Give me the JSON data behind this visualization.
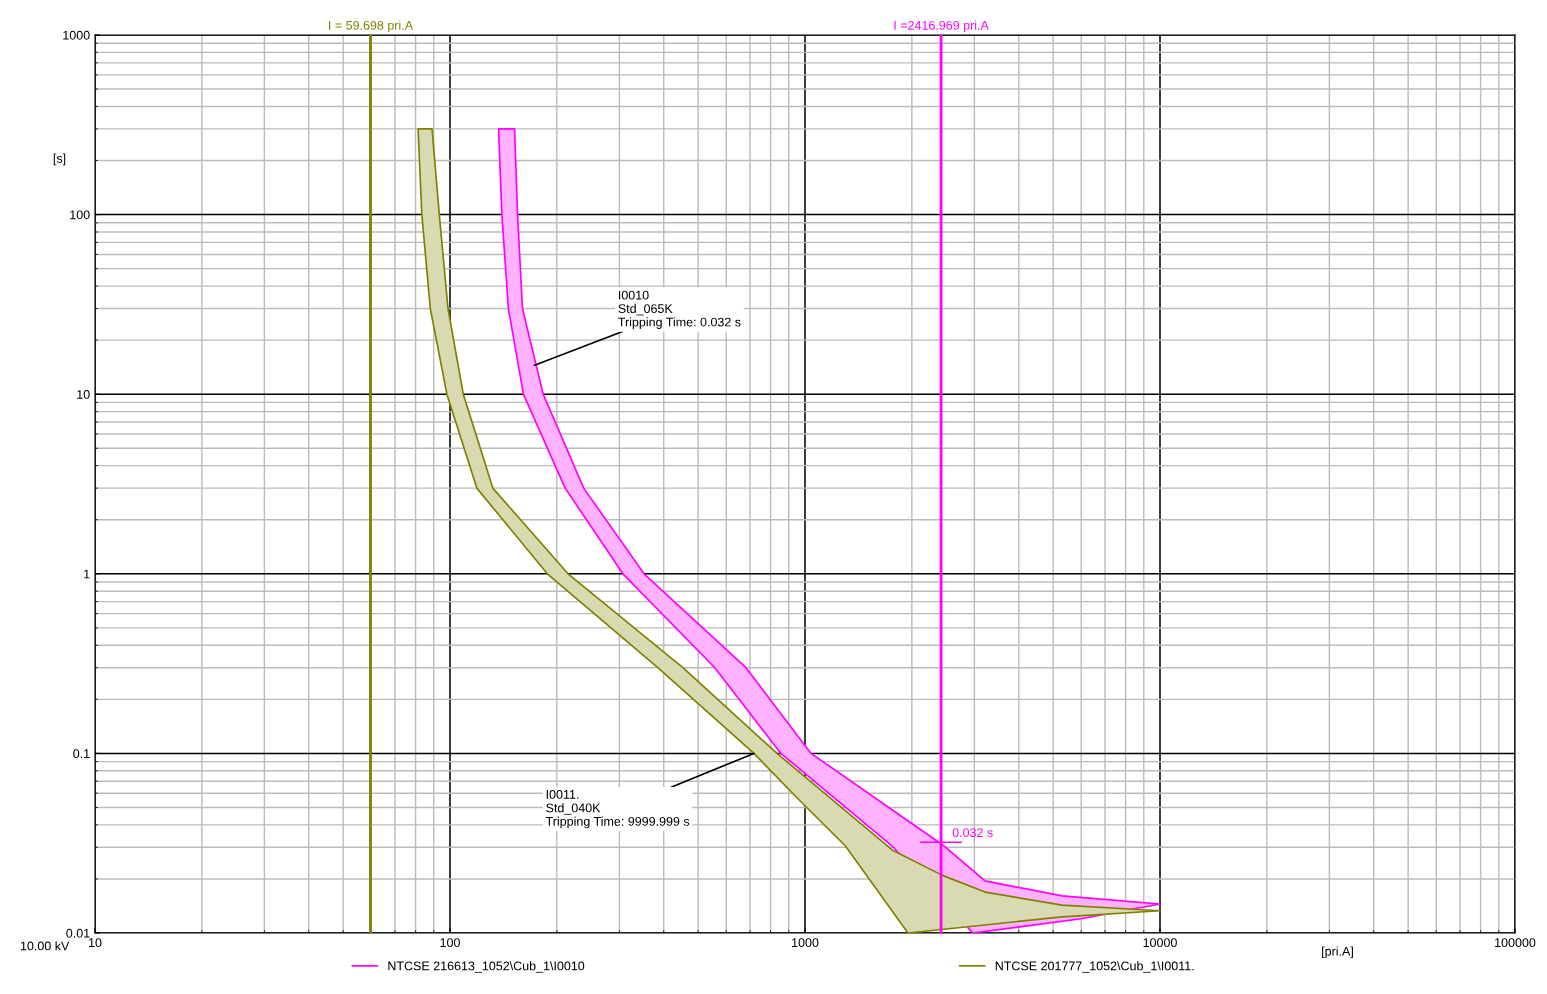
{
  "chart_data": {
    "type": "area",
    "log": "xy",
    "xlabel": "[pri.A]",
    "ylabel": "[s]",
    "xlim": [
      10,
      100000
    ],
    "ylim": [
      0.01,
      1000
    ],
    "xticks": [
      10,
      100,
      1000,
      10000,
      100000
    ],
    "yticks": [
      0.01,
      0.1,
      1,
      10,
      100,
      1000
    ],
    "grid": true,
    "legend": "bottom",
    "series": [
      {
        "name": "NTCSE 216613_1052\\Cub_1\\I0010",
        "color": "#ff00ff",
        "x": [
          137,
          140,
          146,
          161,
          211,
          307,
          557,
          855,
          1760,
          2970,
          6000,
          10000,
          5300,
          3215,
          2466,
          1040,
          682,
          352,
          238,
          183,
          160,
          155,
          152
        ],
        "values": [
          300,
          100,
          30,
          10,
          3,
          1,
          0.3,
          0.1,
          0.0305,
          0.01,
          0.012,
          0.0145,
          0.0161,
          0.0195,
          0.0305,
          0.1,
          0.3,
          1,
          3,
          10,
          30,
          100,
          300
        ]
      },
      {
        "name": "NTCSE 201777_1052\\Cub_1\\I0011.",
        "color": "#808000",
        "x": [
          81.3,
          83.3,
          88,
          98,
          119,
          188,
          385,
          718,
          963,
          1300,
          1950,
          5300,
          10000,
          5300,
          3215,
          2430,
          1760,
          834,
          453,
          215,
          132,
          109,
          98.7,
          93.3,
          89
        ],
        "values": [
          300,
          100,
          30,
          10,
          3,
          1,
          0.3,
          0.1,
          0.055,
          0.0305,
          0.01,
          0.0123,
          0.0133,
          0.0143,
          0.0169,
          0.021,
          0.029,
          0.1,
          0.3,
          1,
          3,
          10,
          30,
          100,
          300
        ]
      }
    ],
    "ref_lines": [
      {
        "axis": "x",
        "value": 59.698,
        "label": "I = 59.698 pri.A",
        "color": "#808000"
      },
      {
        "axis": "x",
        "value": 2416.969,
        "label": "I =2416.969 pri.A",
        "color": "#ff00ff"
      }
    ],
    "annotations": [
      {
        "text": "I0010\nStd_065K\nTripping Time: 0.032 s",
        "x": 173,
        "y": 14.5
      },
      {
        "text": "I0011.\nStd_040K\nTripping Time: 9999.999 s",
        "x": 718,
        "y": 0.1
      },
      {
        "text": "0.032 s",
        "x": 2416.969,
        "y": 0.032
      },
      "10.00 kV"
    ]
  }
}
